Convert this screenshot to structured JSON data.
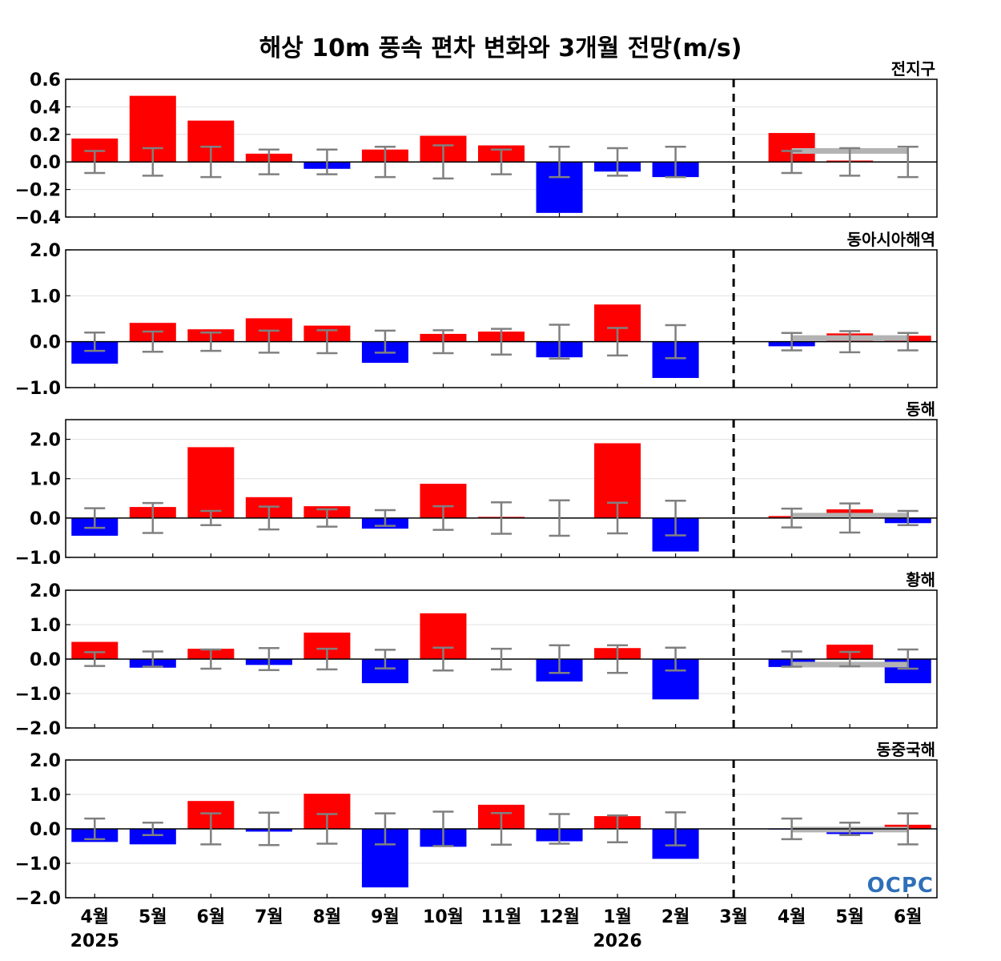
{
  "chart_data": {
    "type": "bar",
    "title": "해상 10m 풍속 편차 변화와 3개월 전망(m/s)",
    "categories": [
      "4월",
      "5월",
      "6월",
      "7월",
      "8월",
      "9월",
      "10월",
      "11월",
      "12월",
      "1월",
      "2월",
      "3월",
      "4월",
      "5월",
      "6월"
    ],
    "years": [
      {
        "label": "2025",
        "category_index": 0
      },
      {
        "label": "2026",
        "category_index": 9
      }
    ],
    "forecast_divider_after_index": 11,
    "colors": {
      "positive": "#ff0000",
      "negative": "#0000ff",
      "error_bar": "#808080",
      "forecast_line": "#b3b3b3"
    },
    "logo_text": "OCPC",
    "panels": [
      {
        "name": "전지구",
        "ylim": [
          -0.4,
          0.6
        ],
        "yticks": [
          -0.4,
          -0.2,
          0.0,
          0.2,
          0.4,
          0.6
        ],
        "ytick_labels": [
          "−0.4",
          "−0.2",
          "0.0",
          "0.2",
          "0.4",
          "0.6"
        ],
        "values": [
          0.17,
          0.48,
          0.3,
          0.06,
          -0.05,
          0.09,
          0.19,
          0.12,
          -0.37,
          -0.07,
          -0.11,
          0.0,
          0.21,
          0.01,
          0.0
        ],
        "error": [
          0.08,
          0.1,
          0.11,
          0.09,
          0.09,
          0.11,
          0.12,
          0.09,
          0.11,
          0.1,
          0.11,
          null,
          0.08,
          0.1,
          0.11
        ],
        "forecast_line": {
          "from": 12,
          "to": 14,
          "value": 0.08
        }
      },
      {
        "name": "동아시아해역",
        "ylim": [
          -1.0,
          2.0
        ],
        "yticks": [
          -1.0,
          0.0,
          1.0,
          2.0
        ],
        "ytick_labels": [
          "−1.0",
          "0.0",
          "1.0",
          "2.0"
        ],
        "values": [
          -0.48,
          0.41,
          0.27,
          0.51,
          0.35,
          -0.46,
          0.17,
          0.22,
          -0.34,
          0.81,
          -0.79,
          0.0,
          -0.1,
          0.18,
          0.13
        ],
        "error": [
          0.2,
          0.22,
          0.2,
          0.24,
          0.25,
          0.24,
          0.25,
          0.28,
          0.37,
          0.3,
          0.36,
          null,
          0.19,
          0.23,
          0.19
        ],
        "forecast_line": {
          "from": 12,
          "to": 14,
          "value": 0.08
        }
      },
      {
        "name": "동해",
        "ylim": [
          -1.0,
          2.5
        ],
        "yticks": [
          -1.0,
          0.0,
          1.0,
          2.0
        ],
        "ytick_labels": [
          "−1.0",
          "0.0",
          "1.0",
          "2.0"
        ],
        "values": [
          -0.45,
          0.28,
          1.8,
          0.53,
          0.3,
          -0.27,
          0.87,
          0.03,
          0.0,
          1.9,
          -0.85,
          0.0,
          0.05,
          0.22,
          -0.13
        ],
        "error": [
          0.25,
          0.38,
          0.18,
          0.29,
          0.22,
          0.2,
          0.3,
          0.4,
          0.45,
          0.39,
          0.44,
          null,
          0.24,
          0.37,
          0.18
        ],
        "forecast_line": {
          "from": 12,
          "to": 14,
          "value": 0.06
        }
      },
      {
        "name": "황해",
        "ylim": [
          -2.0,
          2.0
        ],
        "yticks": [
          -2.0,
          -1.0,
          0.0,
          1.0,
          2.0
        ],
        "ytick_labels": [
          "−2.0",
          "−1.0",
          "0.0",
          "1.0",
          "2.0"
        ],
        "values": [
          0.5,
          -0.25,
          0.3,
          -0.17,
          0.77,
          -0.7,
          1.33,
          0.0,
          -0.65,
          0.32,
          -1.17,
          0.0,
          -0.23,
          0.42,
          -0.7
        ],
        "error": [
          0.2,
          0.22,
          0.28,
          0.32,
          0.3,
          0.27,
          0.33,
          0.3,
          0.4,
          0.4,
          0.33,
          null,
          0.22,
          0.21,
          0.28
        ],
        "forecast_line": {
          "from": 12,
          "to": 14,
          "value": -0.16
        }
      },
      {
        "name": "동중국해",
        "ylim": [
          -2.0,
          2.0
        ],
        "yticks": [
          -2.0,
          -1.0,
          0.0,
          1.0,
          2.0
        ],
        "ytick_labels": [
          "−2.0",
          "−1.0",
          "0.0",
          "1.0",
          "2.0"
        ],
        "values": [
          -0.38,
          -0.45,
          0.81,
          -0.08,
          1.02,
          -1.7,
          -0.52,
          0.7,
          -0.36,
          0.37,
          -0.87,
          0.0,
          -0.02,
          -0.15,
          0.12
        ],
        "error": [
          0.3,
          0.18,
          0.45,
          0.47,
          0.43,
          0.45,
          0.5,
          0.46,
          0.43,
          0.39,
          0.48,
          null,
          0.3,
          0.18,
          0.45
        ],
        "forecast_line": {
          "from": 12,
          "to": 14,
          "value": -0.02
        }
      }
    ]
  }
}
